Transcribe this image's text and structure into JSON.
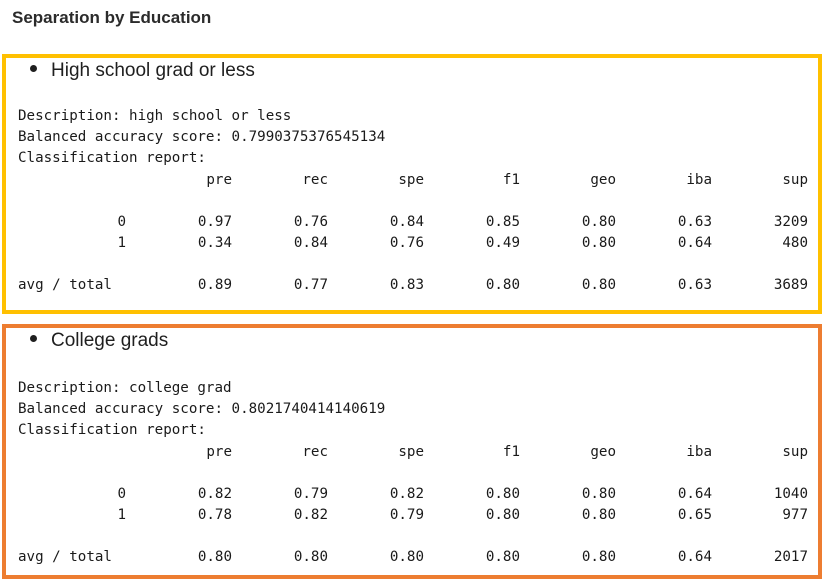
{
  "title": "Separation by Education",
  "sections": [
    {
      "bullet": "High school grad or less",
      "description": "Description: high school or less",
      "balanced": "Balanced accuracy score: 0.7990375376545134",
      "report_label": "Classification report:",
      "headers": [
        "pre",
        "rec",
        "spe",
        "f1",
        "geo",
        "iba",
        "sup"
      ],
      "rows": [
        {
          "label": "0",
          "values": [
            "0.97",
            "0.76",
            "0.84",
            "0.85",
            "0.80",
            "0.63",
            "3209"
          ]
        },
        {
          "label": "1",
          "values": [
            "0.34",
            "0.84",
            "0.76",
            "0.49",
            "0.80",
            "0.64",
            "480"
          ]
        },
        {
          "label": "avg / total",
          "values": [
            "0.89",
            "0.77",
            "0.83",
            "0.80",
            "0.80",
            "0.63",
            "3689"
          ]
        }
      ]
    },
    {
      "bullet": "College grads",
      "description": "Description: college grad",
      "balanced": "Balanced accuracy score: 0.8021740414140619",
      "report_label": "Classification report:",
      "headers": [
        "pre",
        "rec",
        "spe",
        "f1",
        "geo",
        "iba",
        "sup"
      ],
      "rows": [
        {
          "label": "0",
          "values": [
            "0.82",
            "0.79",
            "0.82",
            "0.80",
            "0.80",
            "0.64",
            "1040"
          ]
        },
        {
          "label": "1",
          "values": [
            "0.78",
            "0.82",
            "0.79",
            "0.80",
            "0.80",
            "0.65",
            "977"
          ]
        },
        {
          "label": "avg / total",
          "values": [
            "0.80",
            "0.80",
            "0.80",
            "0.80",
            "0.80",
            "0.64",
            "2017"
          ]
        }
      ]
    }
  ],
  "colors": {
    "section1_border": "#ffc000",
    "section2_border": "#ed7d31"
  }
}
